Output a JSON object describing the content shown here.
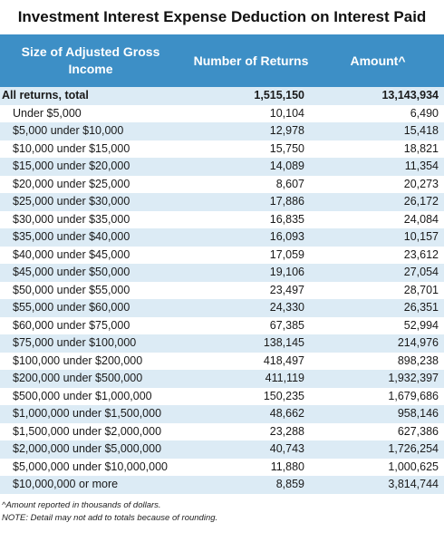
{
  "title": "Investment Interest Expense Deduction on Interest Paid",
  "headers": {
    "size": "Size of Adjusted Gross Income",
    "returns": "Number of Returns",
    "amount": "Amount^"
  },
  "rows": [
    {
      "label": "All returns, total",
      "returns": "1,515,150",
      "amount": "13,143,934"
    },
    {
      "label": "Under $5,000",
      "returns": "10,104",
      "amount": "6,490"
    },
    {
      "label": "$5,000 under $10,000",
      "returns": "12,978",
      "amount": "15,418"
    },
    {
      "label": "$10,000 under $15,000",
      "returns": "15,750",
      "amount": "18,821"
    },
    {
      "label": "$15,000 under $20,000",
      "returns": "14,089",
      "amount": "11,354"
    },
    {
      "label": "$20,000 under $25,000",
      "returns": "8,607",
      "amount": "20,273"
    },
    {
      "label": "$25,000 under $30,000",
      "returns": "17,886",
      "amount": "26,172"
    },
    {
      "label": "$30,000 under $35,000",
      "returns": "16,835",
      "amount": "24,084"
    },
    {
      "label": "$35,000 under $40,000",
      "returns": "16,093",
      "amount": "10,157"
    },
    {
      "label": "$40,000 under $45,000",
      "returns": "17,059",
      "amount": "23,612"
    },
    {
      "label": "$45,000 under $50,000",
      "returns": "19,106",
      "amount": "27,054"
    },
    {
      "label": "$50,000 under $55,000",
      "returns": "23,497",
      "amount": "28,701"
    },
    {
      "label": "$55,000 under $60,000",
      "returns": "24,330",
      "amount": "26,351"
    },
    {
      "label": "$60,000 under $75,000",
      "returns": "67,385",
      "amount": "52,994"
    },
    {
      "label": "$75,000 under $100,000",
      "returns": "138,145",
      "amount": "214,976"
    },
    {
      "label": "$100,000 under $200,000",
      "returns": "418,497",
      "amount": "898,238"
    },
    {
      "label": "$200,000 under $500,000",
      "returns": "411,119",
      "amount": "1,932,397"
    },
    {
      "label": "$500,000 under $1,000,000",
      "returns": "150,235",
      "amount": "1,679,686"
    },
    {
      "label": "$1,000,000 under $1,500,000",
      "returns": "48,662",
      "amount": "958,146"
    },
    {
      "label": "$1,500,000 under $2,000,000",
      "returns": "23,288",
      "amount": "627,386"
    },
    {
      "label": "$2,000,000 under $5,000,000",
      "returns": "40,743",
      "amount": "1,726,254"
    },
    {
      "label": "$5,000,000 under $10,000,000",
      "returns": "11,880",
      "amount": "1,000,625"
    },
    {
      "label": "$10,000,000 or more",
      "returns": "8,859",
      "amount": "3,814,744"
    }
  ],
  "notes": [
    "^Amount reported in thousands of dollars.",
    "NOTE: Detail may not add to totals because of rounding."
  ],
  "colors": {
    "header_bg": "#3d8fc6",
    "stripe": "#dcebf5"
  }
}
